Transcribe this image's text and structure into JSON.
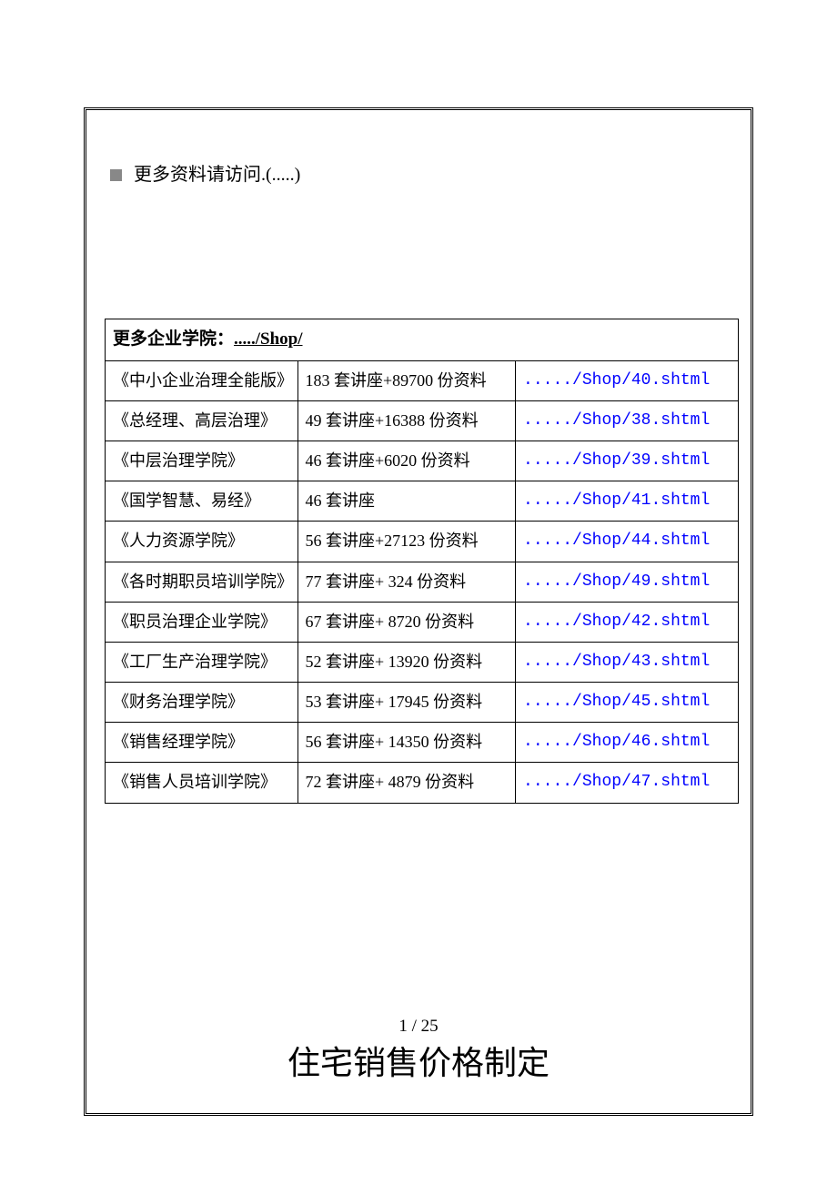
{
  "header": {
    "text": "更多资料请访问.(.....)"
  },
  "table": {
    "headerLabel": "更多企业学院：",
    "headerLink": "...../Shop/",
    "columns": {
      "nameWidth": 212,
      "descWidth": 240,
      "linkWidth": 245
    },
    "rows": [
      {
        "name": "《中小企业治理全能版》",
        "desc": "183 套讲座+89700 份资料",
        "link": "...../Shop/40.shtml"
      },
      {
        "name": "《总经理、高层治理》",
        "desc": "49 套讲座+16388 份资料",
        "link": "...../Shop/38.shtml"
      },
      {
        "name": "《中层治理学院》",
        "desc": "46 套讲座+6020 份资料",
        "link": "...../Shop/39.shtml"
      },
      {
        "name": "《国学智慧、易经》",
        "desc": "46 套讲座",
        "link": "...../Shop/41.shtml"
      },
      {
        "name": "《人力资源学院》",
        "desc": "56 套讲座+27123 份资料",
        "link": "...../Shop/44.shtml"
      },
      {
        "name": "《各时期职员培训学院》",
        "desc": "77 套讲座+ 324 份资料",
        "link": "...../Shop/49.shtml"
      },
      {
        "name": "《职员治理企业学院》",
        "desc": "67 套讲座+ 8720 份资料",
        "link": "...../Shop/42.shtml"
      },
      {
        "name": "《工厂生产治理学院》",
        "desc": "52 套讲座+ 13920 份资料",
        "link": "...../Shop/43.shtml"
      },
      {
        "name": "《财务治理学院》",
        "desc": "53 套讲座+ 17945 份资料",
        "link": "...../Shop/45.shtml"
      },
      {
        "name": "《销售经理学院》",
        "desc": "56 套讲座+ 14350 份资料",
        "link": "...../Shop/46.shtml"
      },
      {
        "name": "《销售人员培训学院》",
        "desc": "72 套讲座+ 4879 份资料",
        "link": "...../Shop/47.shtml"
      }
    ]
  },
  "pageNumber": "1 / 25",
  "footerTitle": "住宅销售价格制定",
  "colors": {
    "border": "#000000",
    "text": "#000000",
    "link": "#0000ff",
    "bullet": "#888888",
    "background": "#ffffff"
  }
}
